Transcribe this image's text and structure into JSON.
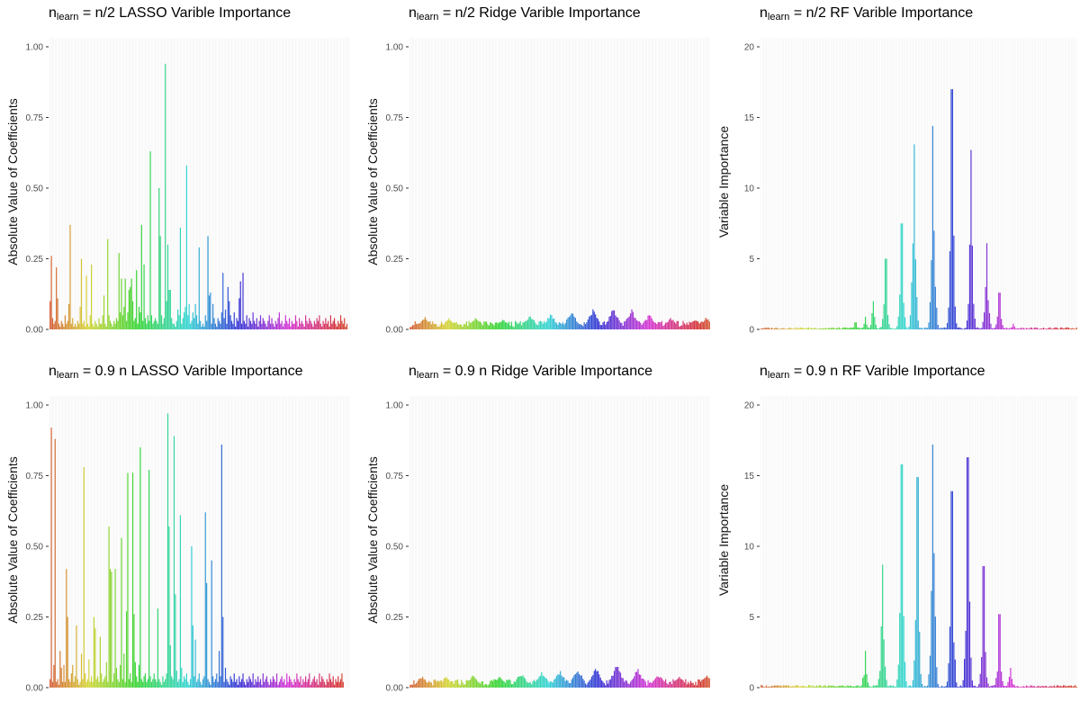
{
  "chart_data": [
    {
      "type": "bar",
      "title": {
        "prefix": "n",
        "sub": "learn",
        "rest": " = n/2  LASSO Varible Importance"
      },
      "ylabel": "Absolute Value of Coefficients",
      "ylim": [
        0,
        1.0
      ],
      "yticks": [
        "0.00",
        "0.25",
        "0.50",
        "0.75",
        "1.00"
      ],
      "ytick_values": [
        0,
        0.25,
        0.5,
        0.75,
        1.0
      ],
      "n_vars": 240,
      "values": [
        0.1,
        0.26,
        0.04,
        0.02,
        0.03,
        0.22,
        0.11,
        0.02,
        0.01,
        0.03,
        0.02,
        0.01,
        0.05,
        0.02,
        0.03,
        0.09,
        0.37,
        0.02,
        0.04,
        0.01,
        0.02,
        0.01,
        0.03,
        0.02,
        0.08,
        0.25,
        0.02,
        0.03,
        0.01,
        0.19,
        0.02,
        0.01,
        0.05,
        0.23,
        0.02,
        0.01,
        0.03,
        0.02,
        0.01,
        0.04,
        0.02,
        0.02,
        0.05,
        0.12,
        0.02,
        0.01,
        0.32,
        0.05,
        0.03,
        0.02,
        0.01,
        0.03,
        0.02,
        0.04,
        0.03,
        0.27,
        0.06,
        0.18,
        0.05,
        0.08,
        0.18,
        0.03,
        0.06,
        0.14,
        0.15,
        0.18,
        0.1,
        0.03,
        0.04,
        0.21,
        0.02,
        0.08,
        0.06,
        0.37,
        0.03,
        0.23,
        0.04,
        0.02,
        0.05,
        0.03,
        0.63,
        0.05,
        0.02,
        0.03,
        0.04,
        0.03,
        0.02,
        0.5,
        0.33,
        0.05,
        0.02,
        0.04,
        0.94,
        0.1,
        0.3,
        0.14,
        0.14,
        0.04,
        0.02,
        0.02,
        0.01,
        0.03,
        0.07,
        0.05,
        0.36,
        0.02,
        0.04,
        0.06,
        0.08,
        0.58,
        0.05,
        0.09,
        0.02,
        0.03,
        0.06,
        0.04,
        0.09,
        0.05,
        0.02,
        0.29,
        0.03,
        0.01,
        0.02,
        0.01,
        0.05,
        0.03,
        0.33,
        0.12,
        0.13,
        0.02,
        0.09,
        0.04,
        0.02,
        0.01,
        0.04,
        0.03,
        0.02,
        0.06,
        0.2,
        0.04,
        0.07,
        0.02,
        0.15,
        0.1,
        0.05,
        0.03,
        0.02,
        0.06,
        0.01,
        0.04,
        0.03,
        0.11,
        0.17,
        0.02,
        0.2,
        0.03,
        0.02,
        0.05,
        0.01,
        0.04,
        0.03,
        0.02,
        0.06,
        0.03,
        0.02,
        0.04,
        0.01,
        0.03,
        0.05,
        0.02,
        0.04,
        0.03,
        0.02,
        0.01,
        0.03,
        0.05,
        0.02,
        0.04,
        0.02,
        0.01,
        0.03,
        0.02,
        0.04,
        0.06,
        0.02,
        0.03,
        0.01,
        0.02,
        0.05,
        0.03,
        0.02,
        0.04,
        0.01,
        0.03,
        0.02,
        0.02,
        0.05,
        0.03,
        0.01,
        0.04,
        0.02,
        0.03,
        0.02,
        0.01,
        0.05,
        0.03,
        0.02,
        0.04,
        0.03,
        0.02,
        0.01,
        0.03,
        0.02,
        0.04,
        0.03,
        0.05,
        0.02,
        0.01,
        0.03,
        0.02,
        0.04,
        0.02,
        0.03,
        0.01,
        0.05,
        0.02,
        0.03,
        0.04,
        0.02,
        0.01,
        0.03,
        0.02,
        0.05,
        0.03,
        0.02,
        0.04,
        0.01,
        0.02
      ]
    },
    {
      "type": "bar",
      "title": {
        "prefix": "n",
        "sub": "learn",
        "rest": " = n/2  Ridge Varible Importance"
      },
      "ylabel": "Absolute Value of Coefficients",
      "ylim": [
        0,
        1.0
      ],
      "yticks": [
        "0.00",
        "0.25",
        "0.50",
        "0.75",
        "1.00"
      ],
      "ytick_values": [
        0,
        0.25,
        0.5,
        0.75,
        1.0
      ],
      "n_vars": 240,
      "generator": {
        "kind": "ridge",
        "base": 0.025,
        "peaks": [
          [
            0.05,
            0.045
          ],
          [
            0.13,
            0.04
          ],
          [
            0.22,
            0.045
          ],
          [
            0.31,
            0.04
          ],
          [
            0.4,
            0.055
          ],
          [
            0.47,
            0.06
          ],
          [
            0.54,
            0.07
          ],
          [
            0.61,
            0.075
          ],
          [
            0.68,
            0.08
          ],
          [
            0.74,
            0.075
          ],
          [
            0.8,
            0.06
          ],
          [
            0.87,
            0.045
          ],
          [
            0.95,
            0.04
          ],
          [
            0.99,
            0.045
          ]
        ]
      }
    },
    {
      "type": "bar",
      "title": {
        "prefix": "n",
        "sub": "learn",
        "rest": " = n/2  RF Varible Importance"
      },
      "ylabel": "Variable Importance",
      "ylim": [
        0,
        20
      ],
      "yticks": [
        "0",
        "5",
        "10",
        "15",
        "20"
      ],
      "ytick_values": [
        0,
        5,
        10,
        15,
        20
      ],
      "n_vars": 240,
      "generator": {
        "kind": "rf",
        "base": 0.12,
        "peaks": [
          [
            0.3,
            0.5
          ],
          [
            0.33,
            0.9
          ],
          [
            0.355,
            2.0
          ],
          [
            0.395,
            5.0
          ],
          [
            0.445,
            7.5
          ],
          [
            0.485,
            13.1
          ],
          [
            0.545,
            14.4
          ],
          [
            0.605,
            17.0
          ],
          [
            0.665,
            12.7
          ],
          [
            0.715,
            6.1
          ],
          [
            0.755,
            2.6
          ],
          [
            0.8,
            0.4
          ]
        ]
      }
    },
    {
      "type": "bar",
      "title": {
        "prefix": "n",
        "sub": "learn",
        "rest": " = 0.9 n  LASSO Varible Importance"
      },
      "ylabel": "Absolute Value of Coefficients",
      "ylim": [
        0,
        1.0
      ],
      "yticks": [
        "0.00",
        "0.25",
        "0.50",
        "0.75",
        "1.00"
      ],
      "ytick_values": [
        0,
        0.25,
        0.5,
        0.75,
        1.0
      ],
      "n_vars": 240,
      "values": [
        0.03,
        0.92,
        0.02,
        0.08,
        0.88,
        0.02,
        0.03,
        0.01,
        0.13,
        0.07,
        0.02,
        0.08,
        0.02,
        0.42,
        0.25,
        0.03,
        0.02,
        0.05,
        0.08,
        0.02,
        0.04,
        0.22,
        0.03,
        0.01,
        0.02,
        0.12,
        0.03,
        0.78,
        0.05,
        0.02,
        0.03,
        0.1,
        0.02,
        0.04,
        0.02,
        0.25,
        0.21,
        0.03,
        0.04,
        0.02,
        0.18,
        0.05,
        0.02,
        0.03,
        0.04,
        0.09,
        0.02,
        0.57,
        0.42,
        0.41,
        0.02,
        0.05,
        0.42,
        0.07,
        0.03,
        0.02,
        0.08,
        0.53,
        0.03,
        0.12,
        0.02,
        0.27,
        0.76,
        0.03,
        0.05,
        0.02,
        0.76,
        0.26,
        0.09,
        0.04,
        0.02,
        0.08,
        0.85,
        0.03,
        0.02,
        0.04,
        0.05,
        0.02,
        0.03,
        0.77,
        0.04,
        0.02,
        0.03,
        0.05,
        0.03,
        0.02,
        0.28,
        0.03,
        0.02,
        0.01,
        0.04,
        0.02,
        0.03,
        0.05,
        0.97,
        0.57,
        0.15,
        0.04,
        0.03,
        0.89,
        0.33,
        0.06,
        0.02,
        0.03,
        0.61,
        0.07,
        0.02,
        0.04,
        0.03,
        0.05,
        0.02,
        0.01,
        0.03,
        0.5,
        0.22,
        0.04,
        0.17,
        0.02,
        0.03,
        0.05,
        0.02,
        0.01,
        0.03,
        0.04,
        0.62,
        0.37,
        0.03,
        0.02,
        0.01,
        0.45,
        0.04,
        0.02,
        0.03,
        0.05,
        0.02,
        0.13,
        0.04,
        0.86,
        0.25,
        0.02,
        0.07,
        0.03,
        0.02,
        0.01,
        0.04,
        0.03,
        0.02,
        0.05,
        0.02,
        0.03,
        0.01,
        0.04,
        0.02,
        0.03,
        0.05,
        0.02,
        0.01,
        0.03,
        0.02,
        0.04,
        0.03,
        0.02,
        0.05,
        0.01,
        0.03,
        0.02,
        0.04,
        0.02,
        0.03,
        0.01,
        0.05,
        0.02,
        0.03,
        0.04,
        0.02,
        0.01,
        0.03,
        0.02,
        0.04,
        0.03,
        0.02,
        0.05,
        0.01,
        0.02,
        0.03,
        0.04,
        0.02,
        0.03,
        0.01,
        0.05,
        0.02,
        0.04,
        0.03,
        0.02,
        0.01,
        0.03,
        0.02,
        0.05,
        0.03,
        0.02,
        0.04,
        0.01,
        0.03,
        0.02,
        0.04,
        0.02,
        0.03,
        0.05,
        0.01,
        0.02,
        0.03,
        0.04,
        0.02,
        0.03,
        0.01,
        0.05,
        0.02,
        0.04,
        0.03,
        0.02,
        0.01,
        0.03,
        0.02,
        0.05,
        0.03,
        0.02,
        0.04,
        0.01,
        0.03,
        0.02,
        0.04,
        0.02,
        0.03,
        0.05,
        0.02
      ]
    },
    {
      "type": "bar",
      "title": {
        "prefix": "n",
        "sub": "learn",
        "rest": " = 0.9 n  Ridge Varible Importance"
      },
      "ylabel": "Absolute Value of Coefficients",
      "ylim": [
        0,
        1.0
      ],
      "yticks": [
        "0.00",
        "0.25",
        "0.50",
        "0.75",
        "1.00"
      ],
      "ytick_values": [
        0,
        0.25,
        0.5,
        0.75,
        1.0
      ],
      "n_vars": 240,
      "generator": {
        "kind": "ridge",
        "base": 0.025,
        "peaks": [
          [
            0.04,
            0.045
          ],
          [
            0.12,
            0.04
          ],
          [
            0.21,
            0.045
          ],
          [
            0.3,
            0.045
          ],
          [
            0.37,
            0.055
          ],
          [
            0.44,
            0.06
          ],
          [
            0.5,
            0.065
          ],
          [
            0.56,
            0.07
          ],
          [
            0.62,
            0.075
          ],
          [
            0.69,
            0.085
          ],
          [
            0.76,
            0.07
          ],
          [
            0.83,
            0.05
          ],
          [
            0.9,
            0.04
          ],
          [
            0.99,
            0.05
          ]
        ]
      }
    },
    {
      "type": "bar",
      "title": {
        "prefix": "n",
        "sub": "learn",
        "rest": " = 0.9 n  RF Varible Importance"
      },
      "ylabel": "Variable Importance",
      "ylim": [
        0,
        20
      ],
      "yticks": [
        "0",
        "5",
        "10",
        "15",
        "20"
      ],
      "ytick_values": [
        0,
        5,
        10,
        15,
        20
      ],
      "n_vars": 240,
      "generator": {
        "kind": "rf",
        "base": 0.15,
        "peaks": [
          [
            0.33,
            2.6
          ],
          [
            0.385,
            8.7
          ],
          [
            0.445,
            15.8
          ],
          [
            0.495,
            14.9
          ],
          [
            0.545,
            17.2
          ],
          [
            0.605,
            13.9
          ],
          [
            0.655,
            16.3
          ],
          [
            0.705,
            8.6
          ],
          [
            0.755,
            5.2
          ],
          [
            0.79,
            1.4
          ]
        ]
      }
    }
  ]
}
